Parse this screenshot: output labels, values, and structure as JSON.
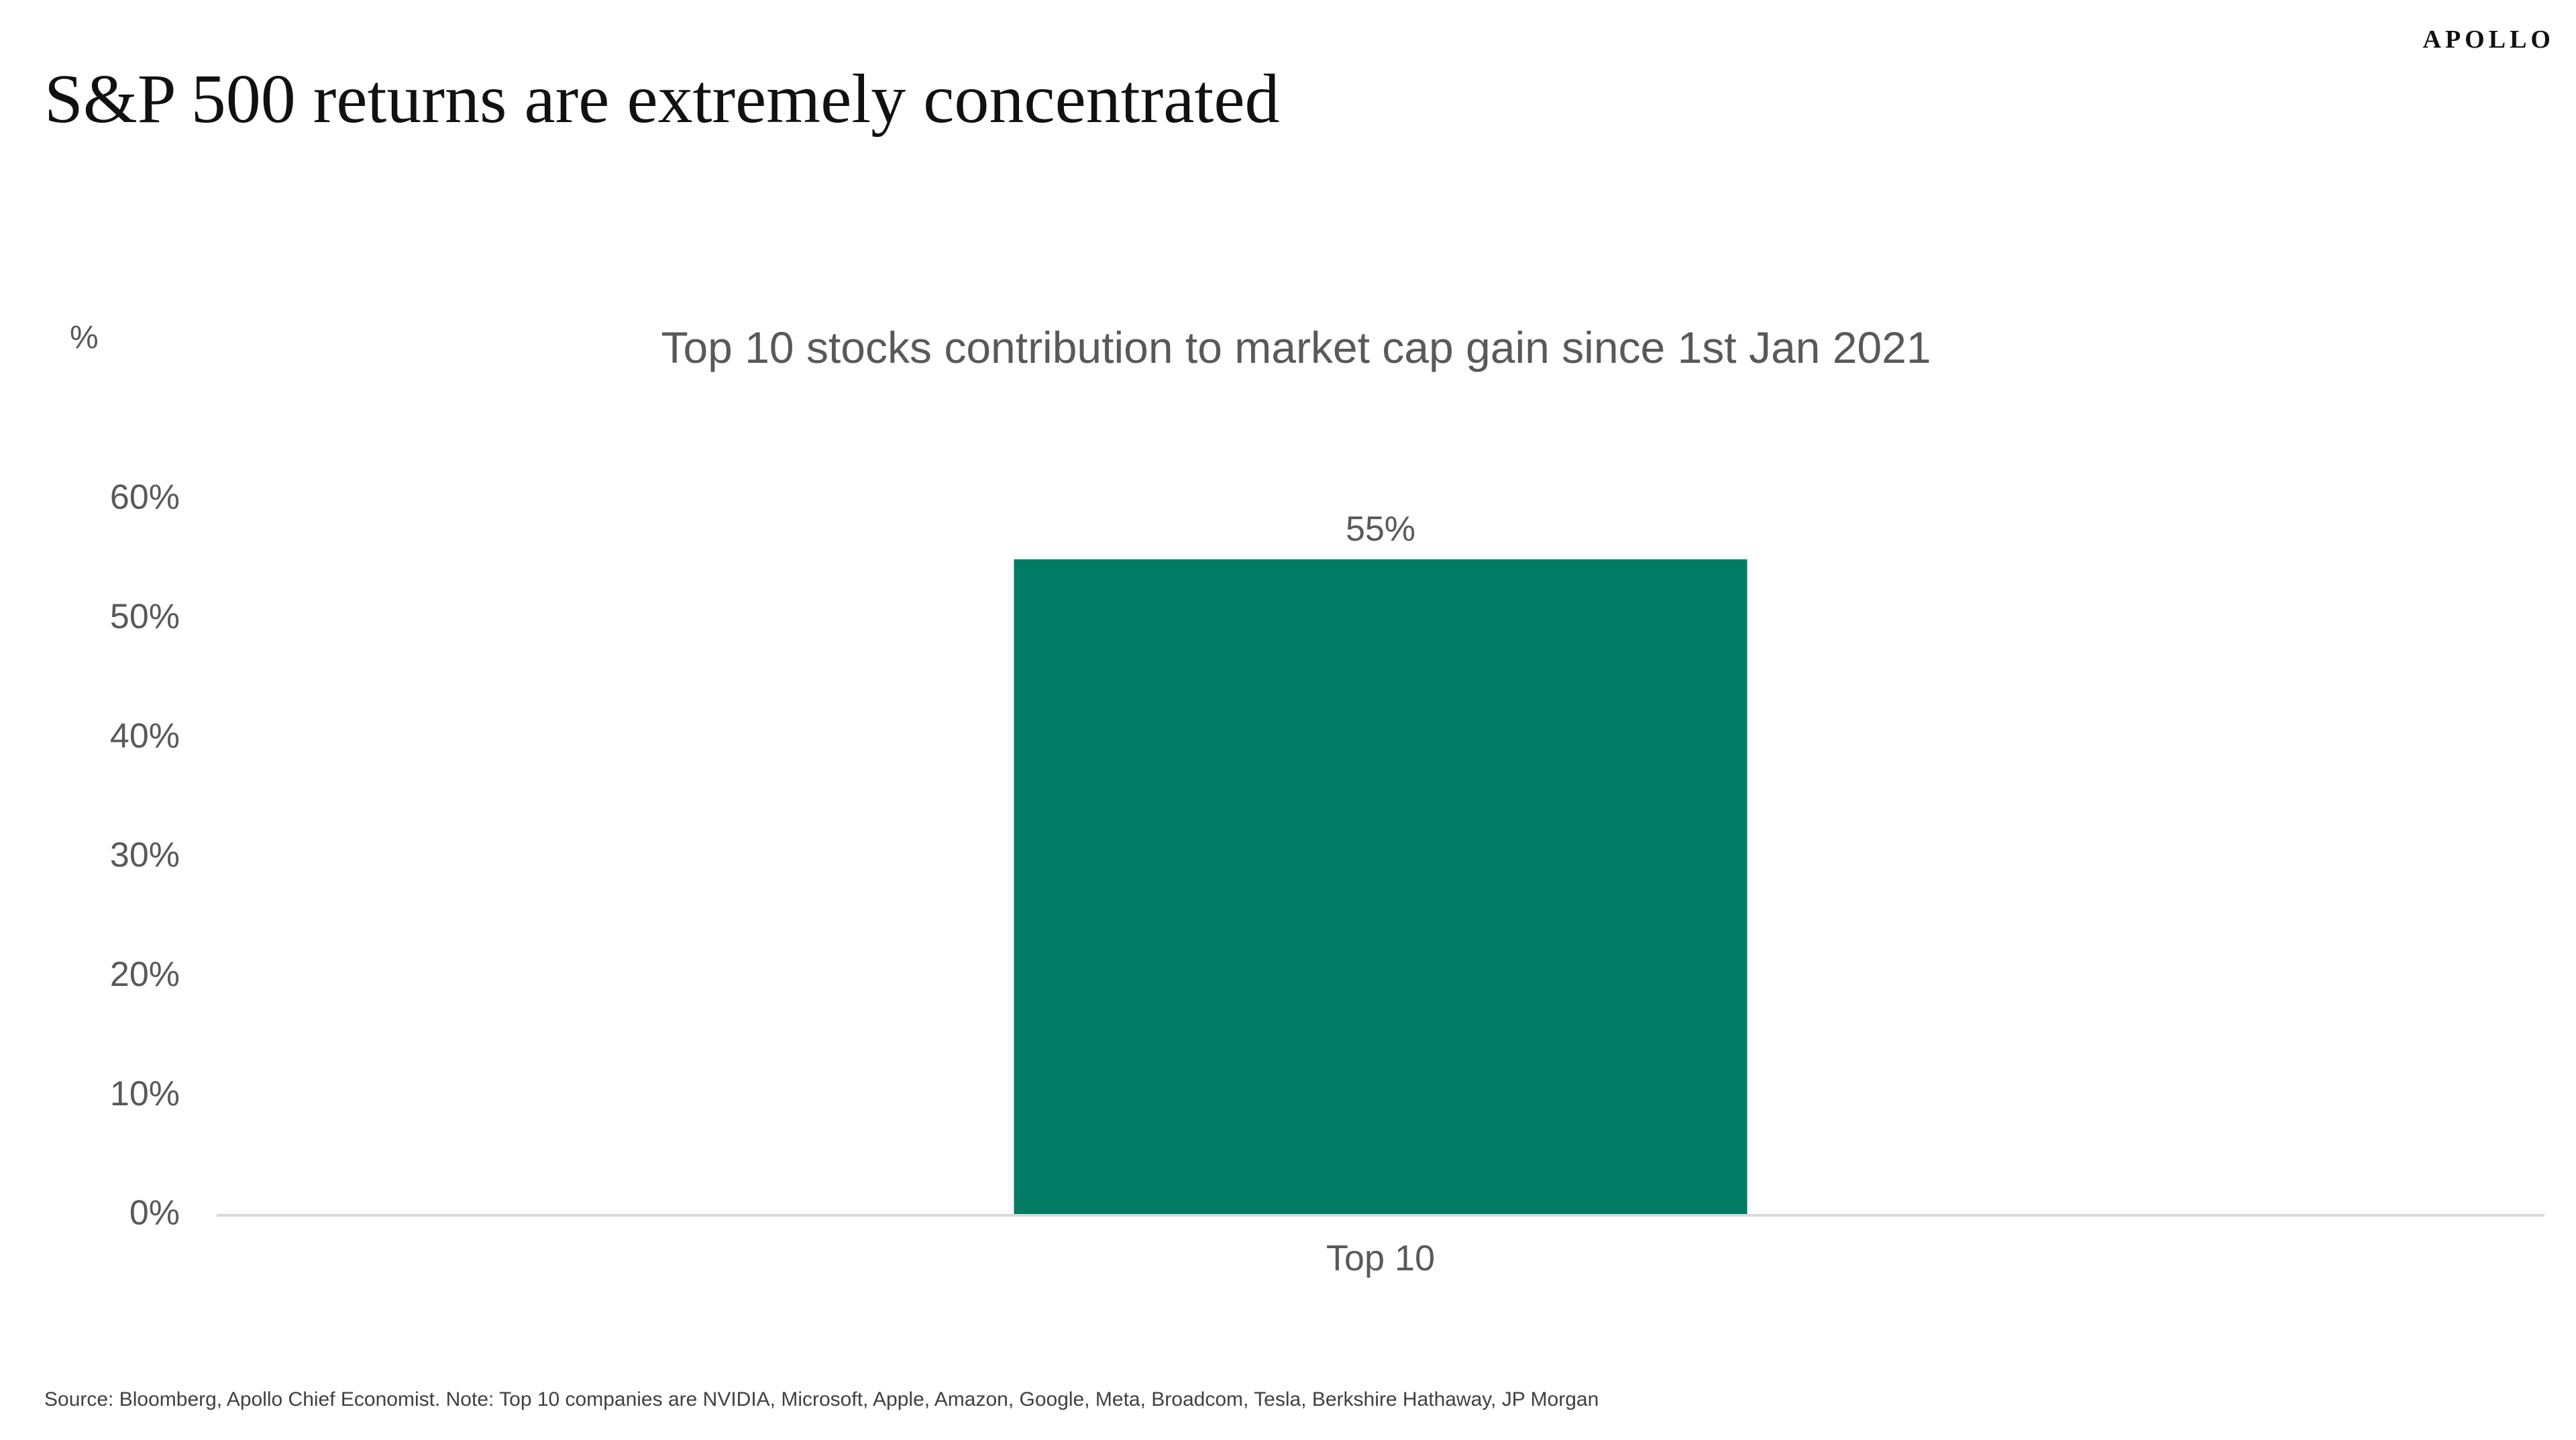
{
  "header": {
    "title": "S&P 500 returns are extremely concentrated",
    "logo_text": "APOLLO"
  },
  "chart_data": {
    "type": "bar",
    "title": "Top 10 stocks contribution to market cap gain since 1st Jan 2021",
    "unit_label": "%",
    "categories": [
      "Top 10"
    ],
    "values": [
      55
    ],
    "data_labels": [
      "55%"
    ],
    "ylim": [
      0,
      60
    ],
    "yticks": [
      0,
      10,
      20,
      30,
      40,
      50,
      60
    ],
    "ytick_labels": [
      "0%",
      "10%",
      "20%",
      "30%",
      "40%",
      "50%",
      "60%"
    ],
    "grid": false,
    "legend": "none",
    "colors": {
      "bar": "#027B65",
      "axis": "#D9D9D9",
      "text": "#595959"
    }
  },
  "footer": {
    "source": "Source: Bloomberg, Apollo Chief Economist. Note: Top 10 companies are NVIDIA, Microsoft, Apple, Amazon, Google, Meta, Broadcom, Tesla, Berkshire Hathaway, JP Morgan"
  }
}
